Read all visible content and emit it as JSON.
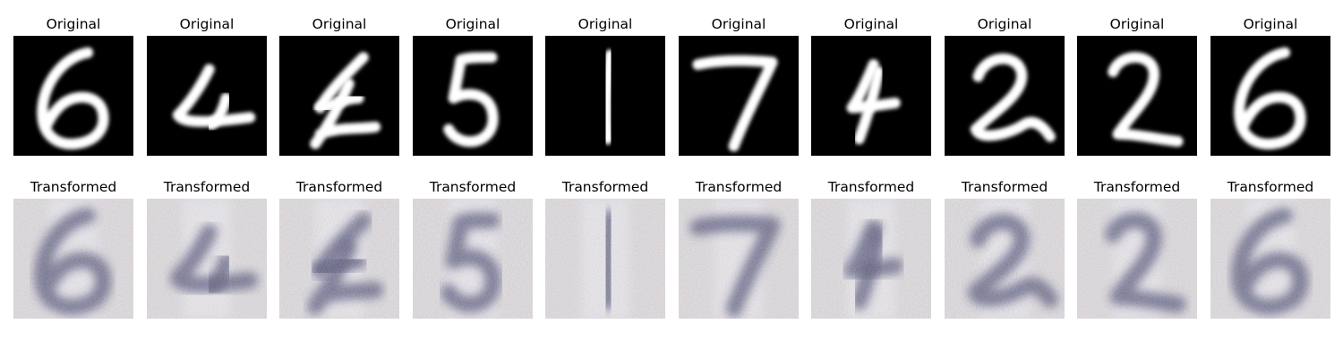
{
  "figure": {
    "rows": [
      {
        "row_id": "original",
        "title": "Original",
        "style": "mnist",
        "digits": [
          "6",
          "4",
          "4",
          "5",
          "1",
          "7",
          "4",
          "2",
          "2",
          "6"
        ]
      },
      {
        "row_id": "transformed",
        "title": "Transformed",
        "style": "svhn-like",
        "digits": [
          "6",
          "4",
          "4",
          "5",
          "1",
          "7",
          "4",
          "2",
          "2",
          "6"
        ]
      }
    ],
    "colors": {
      "original_background": "#000000",
      "original_stroke": "#ffffff",
      "transformed_background": "#dcd8dc",
      "transformed_stroke": "#2b2a5e"
    }
  }
}
